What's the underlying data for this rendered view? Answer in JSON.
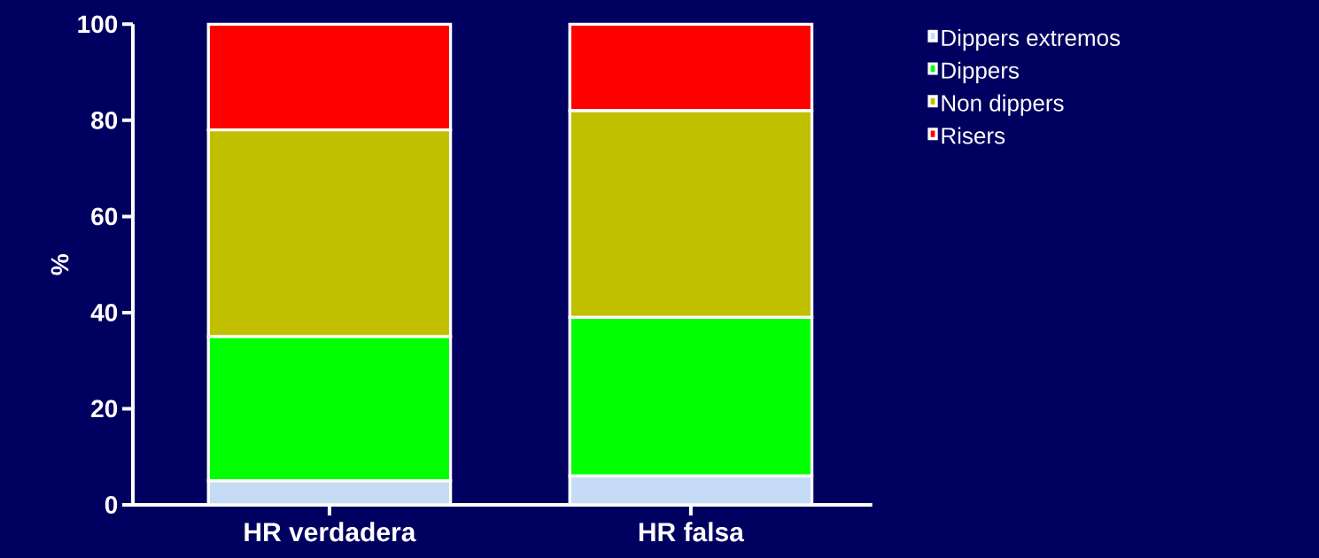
{
  "chart_data": {
    "type": "bar",
    "stacked": true,
    "ylabel": "%",
    "categories": [
      "HR verdadera",
      "HR falsa"
    ],
    "series": [
      {
        "name": "Dippers extremos",
        "color": "#c6dcf6",
        "values": [
          5,
          6
        ]
      },
      {
        "name": "Dippers",
        "color": "#00ff00",
        "values": [
          30,
          33
        ]
      },
      {
        "name": "Non dippers",
        "color": "#c0c000",
        "values": [
          43,
          43
        ]
      },
      {
        "name": "Risers",
        "color": "#ff0000",
        "values": [
          22,
          18
        ]
      }
    ],
    "ylim": [
      0,
      100
    ],
    "yticks": [
      0,
      20,
      40,
      60,
      80,
      100
    ],
    "legend": "top right"
  }
}
